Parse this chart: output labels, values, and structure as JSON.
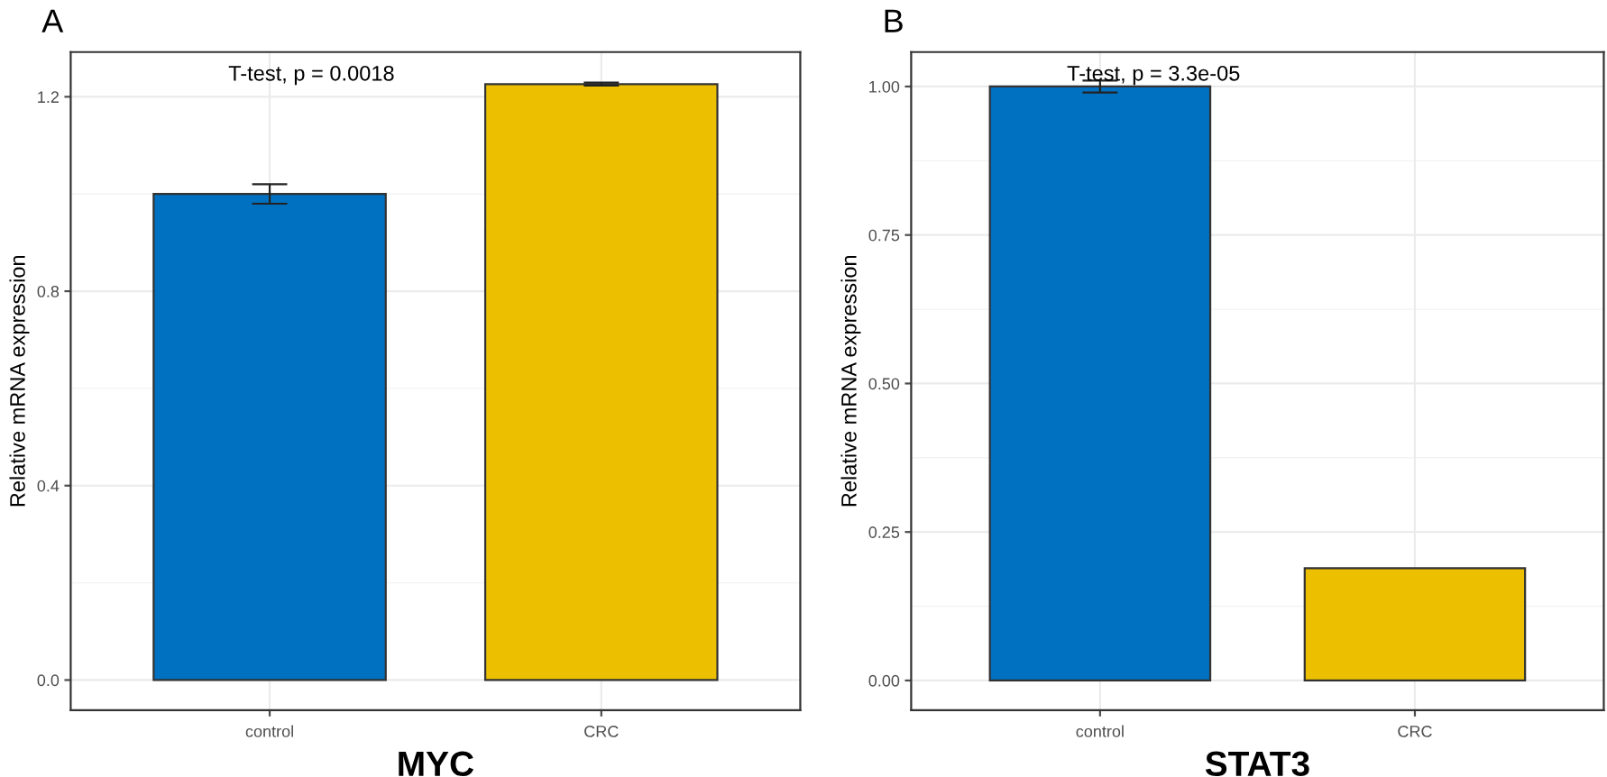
{
  "chart_data": [
    {
      "type": "bar",
      "title": "A",
      "xlabel": "MYC",
      "ylabel": "Relative mRNA expression",
      "categories": [
        "control",
        "CRC"
      ],
      "values": [
        1.0,
        1.226
      ],
      "colors": [
        "#0070c0",
        "#ecc000"
      ],
      "errors": [
        0.02,
        0.003
      ],
      "ylim": [
        -0.062,
        1.292
      ],
      "yticks": [
        {
          "value": 0,
          "label": "0.0"
        },
        0.4,
        0.8,
        1.2
      ],
      "grid": true,
      "annotations": [
        "T-test, p = 0.0018"
      ]
    },
    {
      "type": "bar",
      "title": "B",
      "xlabel": "STAT3",
      "ylabel": "Relative mRNA expression",
      "categories": [
        "control",
        "CRC"
      ],
      "values": [
        1.0,
        0.189
      ],
      "colors": [
        "#0070c0",
        "#ecc000"
      ],
      "errors": [
        0.01,
        null
      ],
      "ylim": [
        -0.05,
        1.058
      ],
      "yticks": [
        {
          "value": 0,
          "label": "0.00"
        },
        0.25,
        {
          "value": 0.5,
          "label": "0.50"
        },
        0.75,
        {
          "value": 1,
          "label": "1.00"
        }
      ],
      "grid": true,
      "annotations": [
        "T-test, p = 3.3e-05"
      ]
    }
  ]
}
